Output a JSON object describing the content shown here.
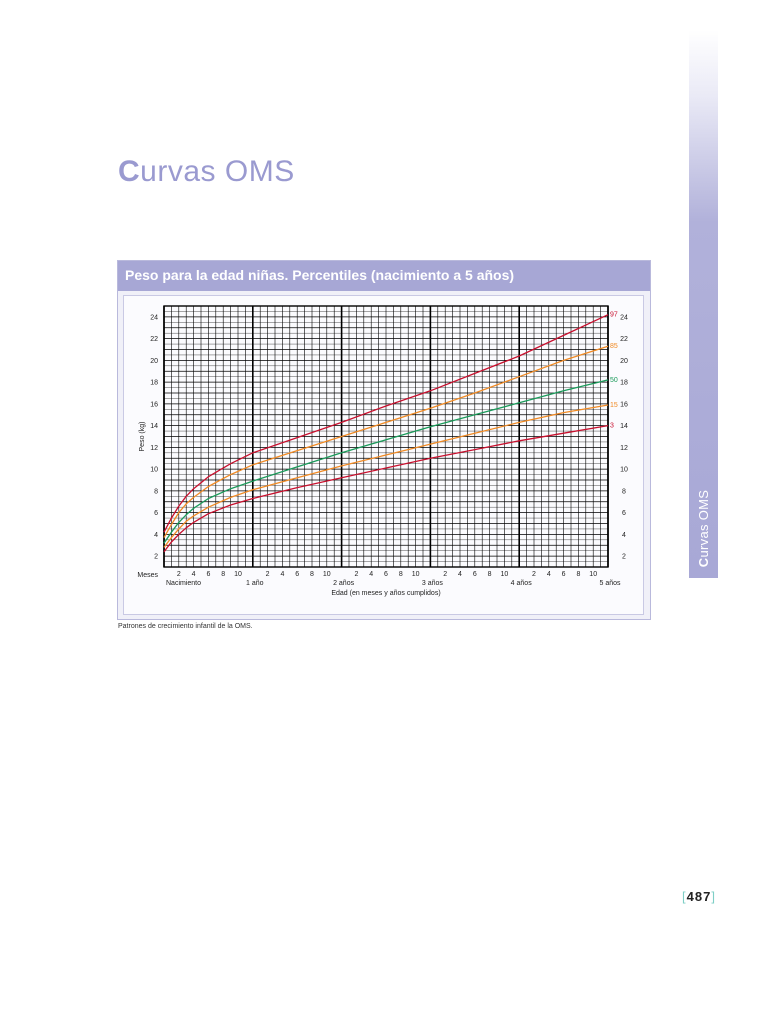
{
  "page": {
    "title_first": "C",
    "title_rest": "urvas OMS",
    "side_first": "C",
    "side_rest": "urvas OMS",
    "source_note": "Patrones de crecimiento infantil de la OMS.",
    "page_number": "487",
    "bracket_open": "[",
    "bracket_close": "]"
  },
  "chart_data": {
    "type": "line",
    "title": "Peso para la edad niñas. Percentiles (nacimiento a 5 años)",
    "xlabel": "Edad (en meses y años cumplidos)",
    "ylabel": "Peso (kg)",
    "x_unit": "months",
    "xlim": [
      0,
      60
    ],
    "ylim": [
      1,
      25
    ],
    "y_ticks": [
      2,
      4,
      6,
      8,
      10,
      12,
      14,
      16,
      18,
      20,
      22,
      24
    ],
    "axis_row_label": "Meses",
    "month_ticks": [
      "2",
      "4",
      "6",
      "8",
      "10"
    ],
    "year_labels": [
      "Nacimiento",
      "1 año",
      "2 años",
      "3 años",
      "4 años",
      "5 años"
    ],
    "grid": true,
    "colors": {
      "p97": "#c8102e",
      "p85": "#f08a24",
      "p50": "#1a9a5a",
      "p15": "#f08a24",
      "p3": "#c8102e"
    },
    "series": [
      {
        "label": "97",
        "color_key": "p97",
        "x": [
          0,
          1,
          2,
          3,
          4,
          6,
          9,
          12,
          18,
          24,
          30,
          36,
          42,
          48,
          54,
          60
        ],
        "y": [
          4.2,
          5.5,
          6.6,
          7.5,
          8.2,
          9.3,
          10.5,
          11.5,
          12.9,
          14.3,
          15.8,
          17.2,
          18.8,
          20.4,
          22.3,
          24.2
        ]
      },
      {
        "label": "85",
        "color_key": "p85",
        "x": [
          0,
          1,
          2,
          3,
          4,
          6,
          9,
          12,
          18,
          24,
          30,
          36,
          42,
          48,
          54,
          60
        ],
        "y": [
          3.7,
          4.9,
          6.0,
          6.8,
          7.4,
          8.4,
          9.5,
          10.4,
          11.7,
          13.0,
          14.3,
          15.6,
          17.0,
          18.5,
          20.0,
          21.3
        ]
      },
      {
        "label": "50",
        "color_key": "p50",
        "x": [
          0,
          1,
          2,
          3,
          4,
          6,
          9,
          12,
          18,
          24,
          30,
          36,
          42,
          48,
          54,
          60
        ],
        "y": [
          3.2,
          4.2,
          5.1,
          5.8,
          6.4,
          7.3,
          8.2,
          8.9,
          10.2,
          11.5,
          12.7,
          13.9,
          15.0,
          16.1,
          17.2,
          18.2
        ]
      },
      {
        "label": "15",
        "color_key": "p15",
        "x": [
          0,
          1,
          2,
          3,
          4,
          6,
          9,
          12,
          18,
          24,
          30,
          36,
          42,
          48,
          54,
          60
        ],
        "y": [
          2.8,
          3.7,
          4.5,
          5.2,
          5.7,
          6.5,
          7.4,
          8.1,
          9.2,
          10.3,
          11.3,
          12.3,
          13.3,
          14.3,
          15.2,
          15.9
        ]
      },
      {
        "label": "3",
        "color_key": "p3",
        "x": [
          0,
          1,
          2,
          3,
          4,
          6,
          9,
          12,
          18,
          24,
          30,
          36,
          42,
          48,
          54,
          60
        ],
        "y": [
          2.4,
          3.3,
          4.0,
          4.6,
          5.1,
          5.9,
          6.7,
          7.3,
          8.3,
          9.2,
          10.1,
          11.0,
          11.8,
          12.6,
          13.3,
          14.0
        ]
      }
    ]
  }
}
